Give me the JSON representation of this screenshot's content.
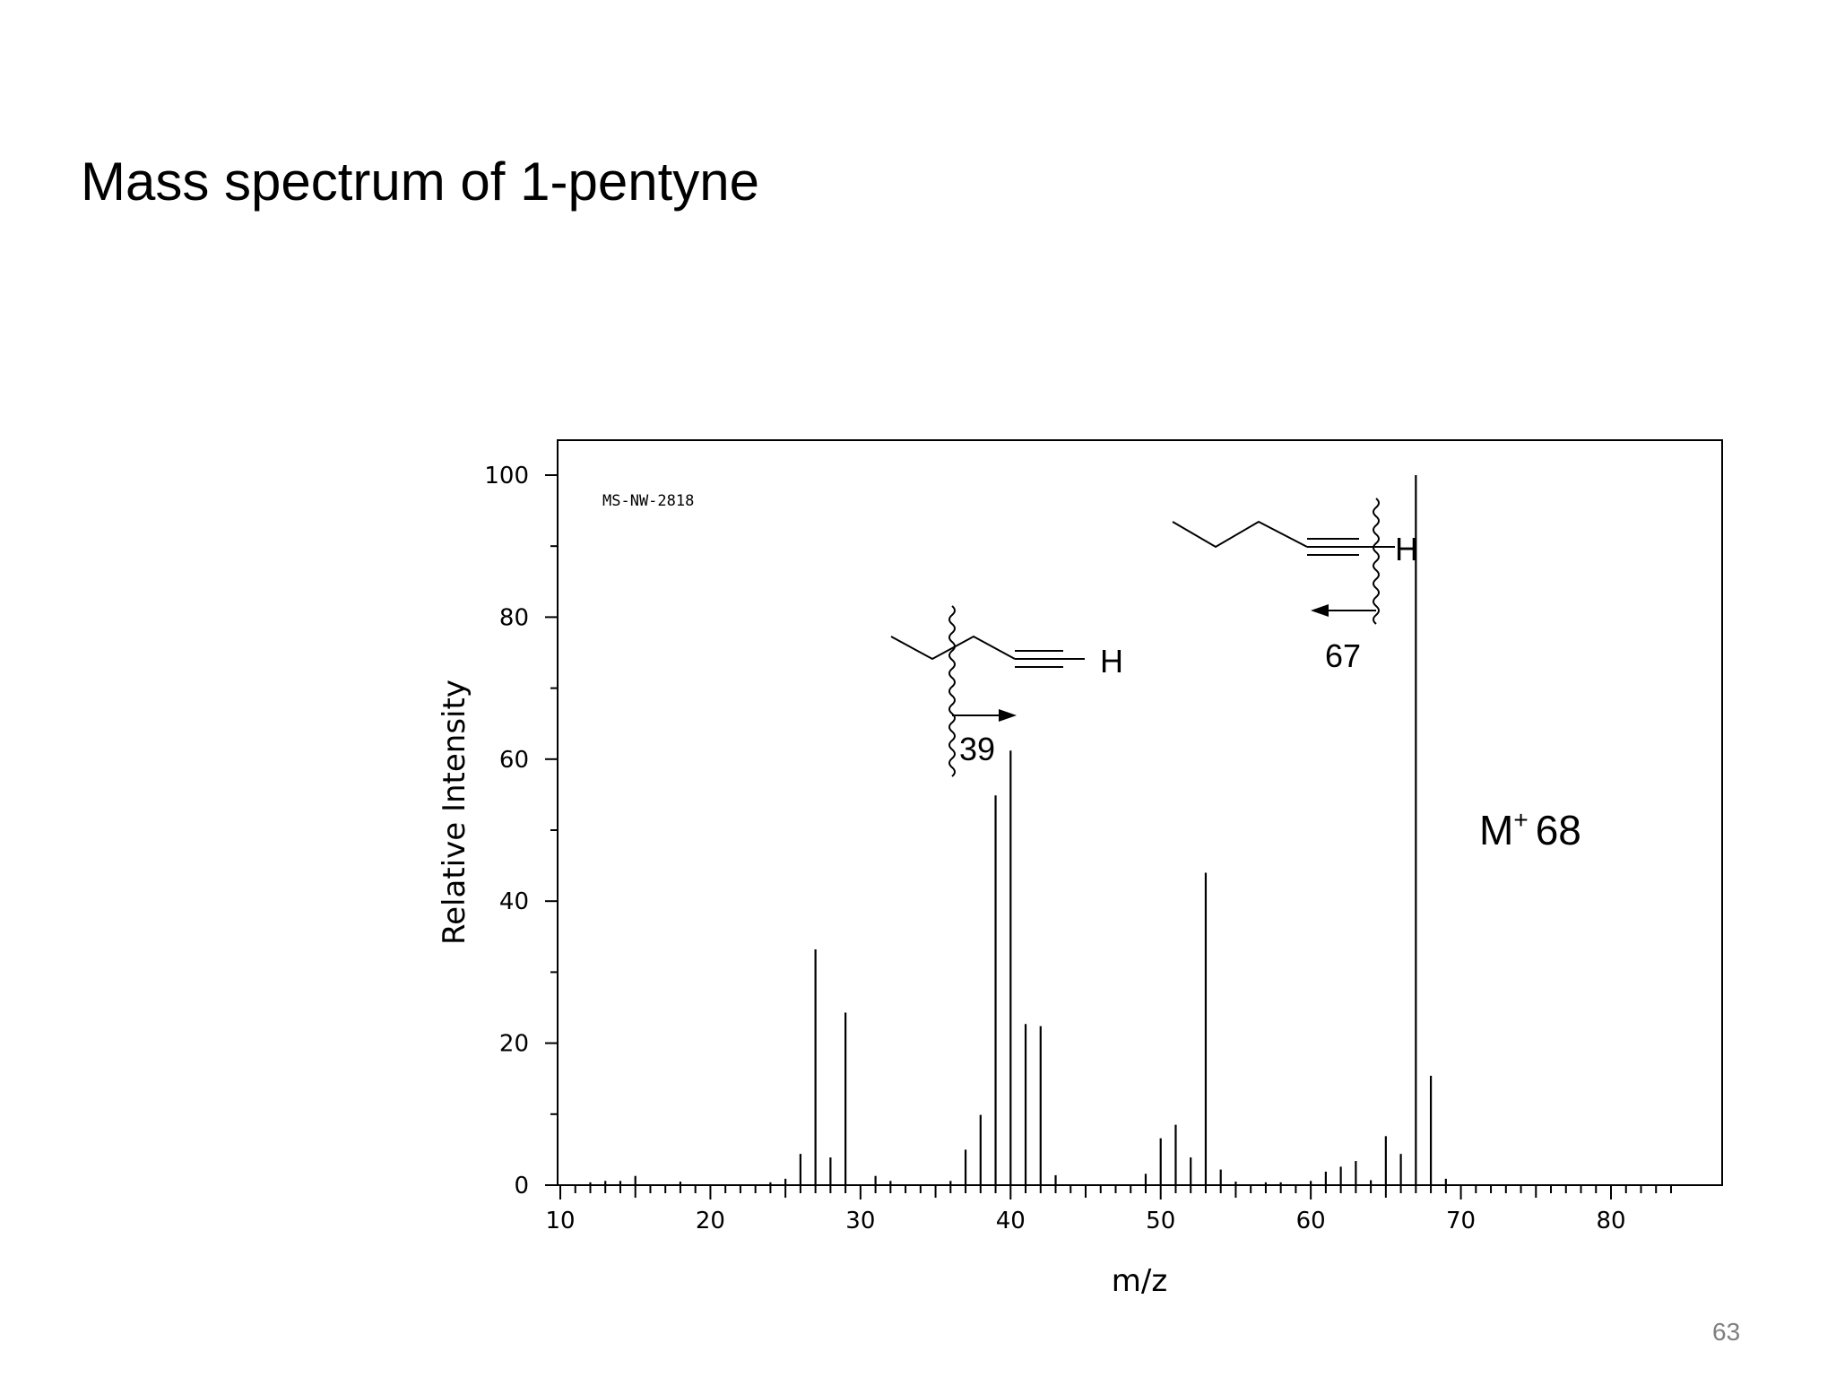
{
  "slide": {
    "title": "Mass spectrum of 1-pentyne",
    "page_number": "63"
  },
  "chart_data": {
    "type": "bar",
    "spectrum_id": "MS-NW-2818",
    "xlabel": "m/z",
    "ylabel": "Relative Intensity",
    "xlim": [
      10,
      85
    ],
    "ylim": [
      0,
      105
    ],
    "x_ticks": [
      10,
      20,
      30,
      40,
      50,
      60,
      70,
      80
    ],
    "y_ticks": [
      0,
      20,
      40,
      60,
      80,
      100
    ],
    "peaks": [
      {
        "mz": 12,
        "intensity": 0.4
      },
      {
        "mz": 13,
        "intensity": 0.6
      },
      {
        "mz": 14,
        "intensity": 0.6
      },
      {
        "mz": 15,
        "intensity": 1.3
      },
      {
        "mz": 18,
        "intensity": 0.5
      },
      {
        "mz": 24,
        "intensity": 0.4
      },
      {
        "mz": 25,
        "intensity": 0.9
      },
      {
        "mz": 26,
        "intensity": 4.4
      },
      {
        "mz": 27,
        "intensity": 33.2
      },
      {
        "mz": 28,
        "intensity": 3.9
      },
      {
        "mz": 29,
        "intensity": 24.3
      },
      {
        "mz": 31,
        "intensity": 1.3
      },
      {
        "mz": 32,
        "intensity": 0.6
      },
      {
        "mz": 36,
        "intensity": 0.6
      },
      {
        "mz": 37,
        "intensity": 5.0
      },
      {
        "mz": 38,
        "intensity": 9.9
      },
      {
        "mz": 39,
        "intensity": 54.9
      },
      {
        "mz": 40,
        "intensity": 61.2
      },
      {
        "mz": 41,
        "intensity": 22.7
      },
      {
        "mz": 42,
        "intensity": 22.4
      },
      {
        "mz": 43,
        "intensity": 1.4
      },
      {
        "mz": 49,
        "intensity": 1.6
      },
      {
        "mz": 50,
        "intensity": 6.6
      },
      {
        "mz": 51,
        "intensity": 8.5
      },
      {
        "mz": 52,
        "intensity": 3.9
      },
      {
        "mz": 53,
        "intensity": 44.0
      },
      {
        "mz": 54,
        "intensity": 2.2
      },
      {
        "mz": 55,
        "intensity": 0.5
      },
      {
        "mz": 57,
        "intensity": 0.4
      },
      {
        "mz": 58,
        "intensity": 0.4
      },
      {
        "mz": 60,
        "intensity": 0.6
      },
      {
        "mz": 61,
        "intensity": 1.9
      },
      {
        "mz": 62,
        "intensity": 2.6
      },
      {
        "mz": 63,
        "intensity": 3.4
      },
      {
        "mz": 64,
        "intensity": 0.7
      },
      {
        "mz": 65,
        "intensity": 6.9
      },
      {
        "mz": 66,
        "intensity": 4.4
      },
      {
        "mz": 67,
        "intensity": 100.0
      },
      {
        "mz": 68,
        "intensity": 15.4
      },
      {
        "mz": 69,
        "intensity": 0.9
      }
    ],
    "annotations": {
      "fragment_39_label": "39",
      "fragment_67_label": "67",
      "hydrogen_label": "H",
      "molecular_ion_symbol": "M",
      "molecular_ion_superscript": "+",
      "molecular_ion_value": "68"
    }
  }
}
